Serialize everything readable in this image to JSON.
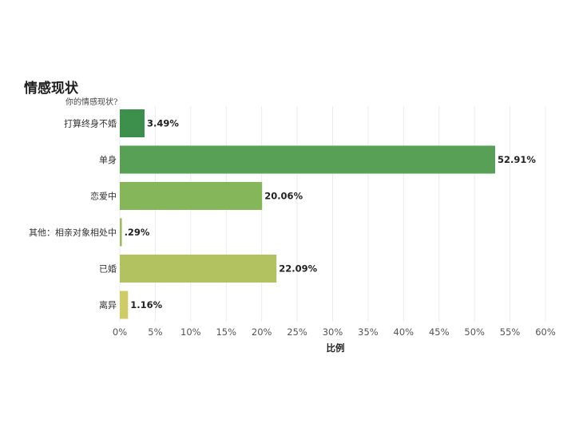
{
  "chart_data": {
    "type": "bar",
    "orientation": "horizontal",
    "title": "情感现状",
    "subtitle": "你的情感现状?",
    "xlabel": "比例",
    "ylabel": "",
    "categories": [
      "打算终身不婚",
      "单身",
      "恋爱中",
      "其他：相亲对象相处中",
      "已婚",
      "离异"
    ],
    "values": [
      3.49,
      52.91,
      20.06,
      0.29,
      22.09,
      1.16
    ],
    "value_labels": [
      "3.49%",
      "52.91%",
      "20.06%",
      ".29%",
      "22.09%",
      "1.16%"
    ],
    "bar_colors": [
      "#3d8f4c",
      "#57a055",
      "#86b65a",
      "#9dbd5d",
      "#b2c260",
      "#cfcb67"
    ],
    "xlim": [
      0,
      60
    ],
    "x_ticks": [
      "0%",
      "5%",
      "10%",
      "15%",
      "20%",
      "25%",
      "30%",
      "35%",
      "40%",
      "45%",
      "50%",
      "55%",
      "60%"
    ],
    "grid": true,
    "legend": "none"
  }
}
